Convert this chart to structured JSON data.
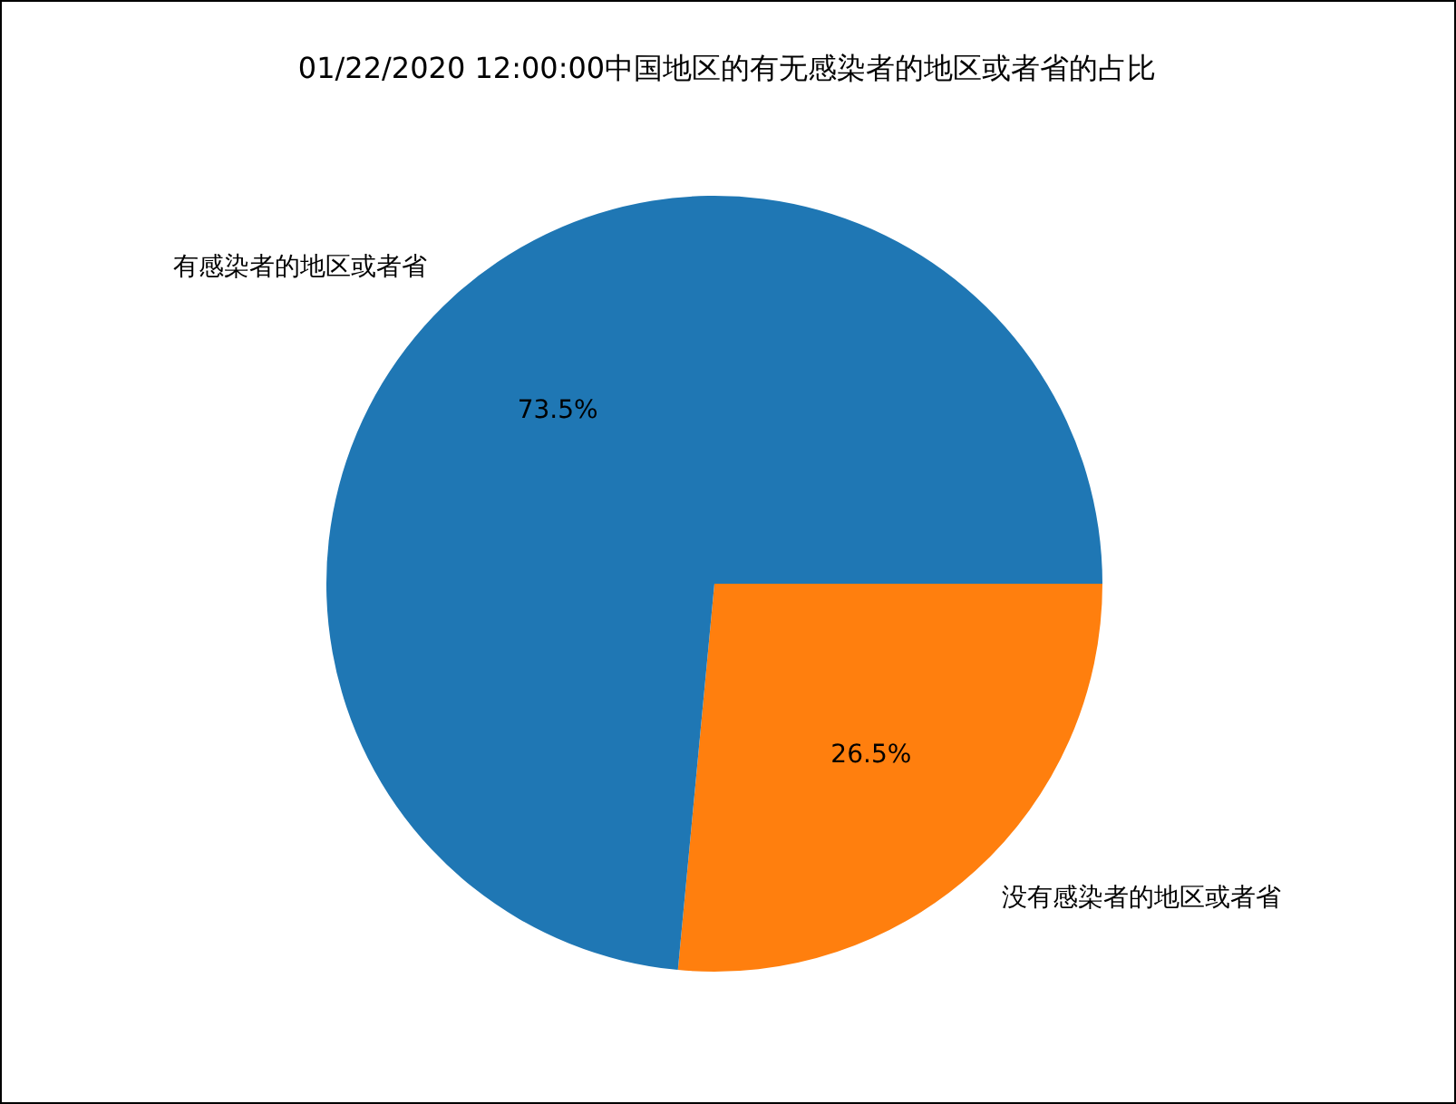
{
  "chart_data": {
    "type": "pie",
    "title": "01/22/2020 12:00:00中国地区的有无感染者的地区或者省的占比",
    "categories": [
      "有感染者的地区或者省",
      "没有感染者的地区或者省"
    ],
    "values": [
      73.5,
      26.5
    ],
    "colors": [
      "#1f77b4",
      "#ff7f0e"
    ],
    "value_labels": [
      "73.5%",
      "26.5%"
    ]
  }
}
